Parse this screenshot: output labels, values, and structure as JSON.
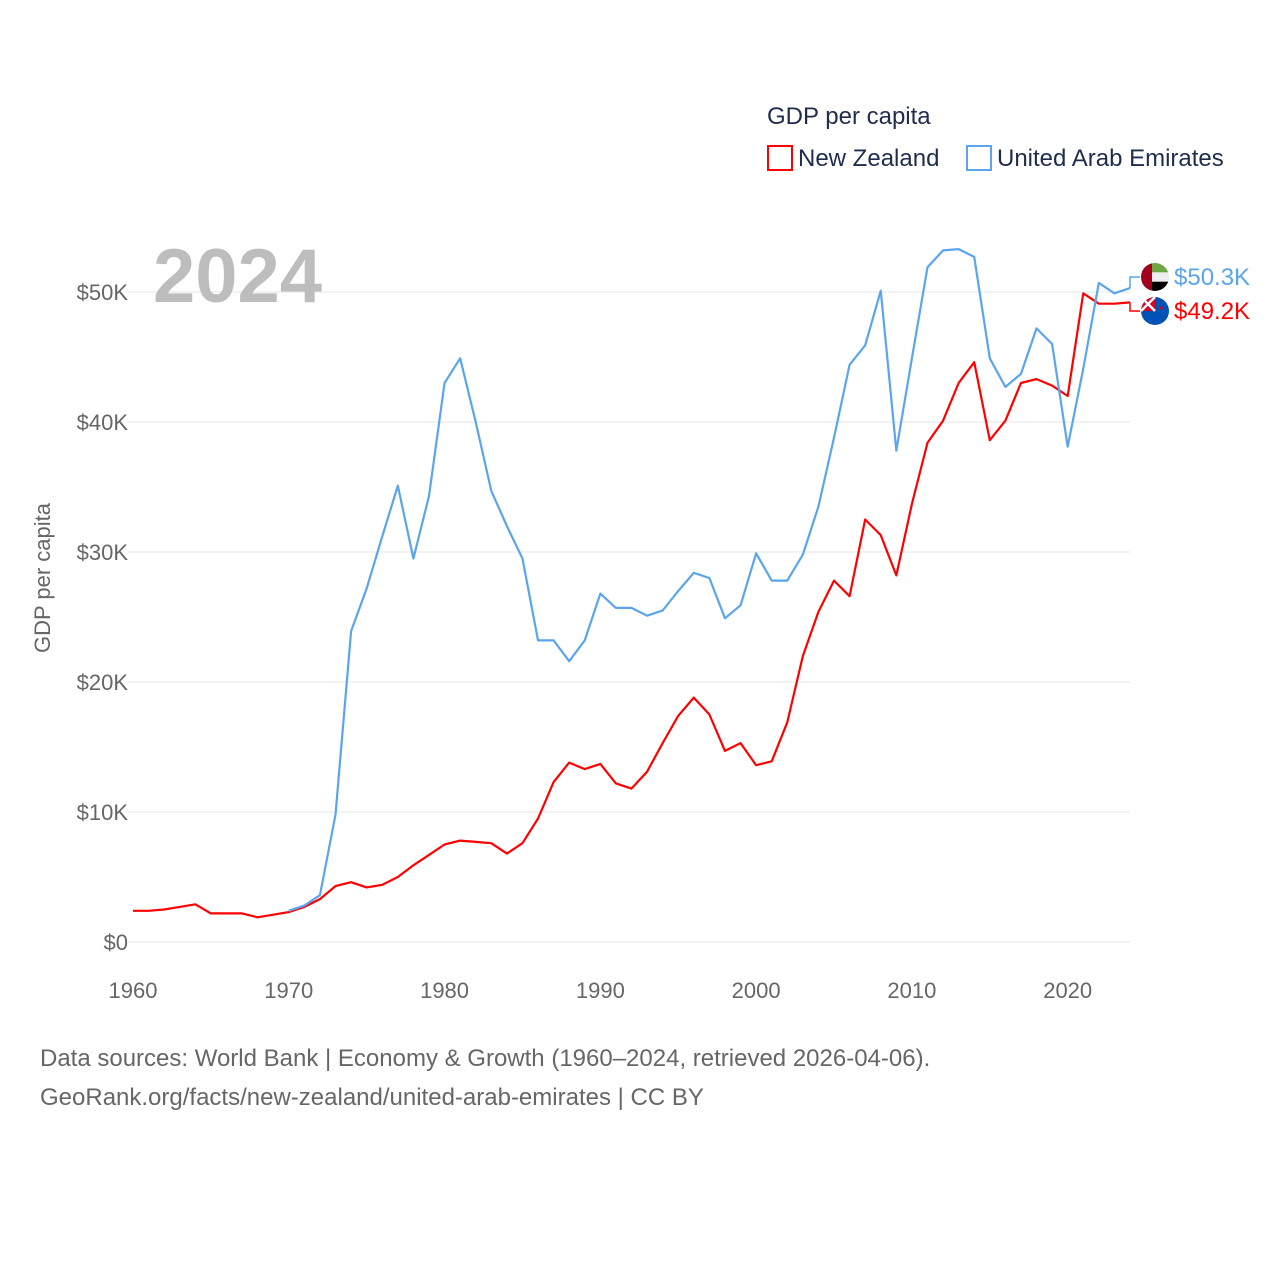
{
  "chart_data": {
    "type": "line",
    "title": "GDP per capita",
    "year_label": "2024",
    "xlabel": "",
    "ylabel": "GDP per capita",
    "xlim": [
      1960,
      2024
    ],
    "ylim": [
      0,
      50000
    ],
    "x_ticks": [
      1960,
      1970,
      1980,
      1990,
      2000,
      2010,
      2020
    ],
    "x_tick_labels": [
      "1960",
      "1970",
      "1980",
      "1990",
      "2000",
      "2010",
      "2020"
    ],
    "y_ticks": [
      0,
      10000,
      20000,
      30000,
      40000,
      50000
    ],
    "y_tick_labels": [
      "$0",
      "$10K",
      "$20K",
      "$30K",
      "$40K",
      "$50K"
    ],
    "grid": true,
    "legend_placement": "top-right",
    "series": [
      {
        "name": "New Zealand",
        "color": "#ff0000",
        "end_label": "$49.2K",
        "flag": "new-zealand",
        "start_year": 1960,
        "values_k": [
          2.4,
          2.4,
          2.5,
          2.7,
          2.9,
          2.2,
          2.2,
          2.2,
          1.9,
          2.1,
          2.3,
          2.7,
          3.3,
          4.3,
          4.6,
          4.2,
          4.4,
          5.0,
          5.9,
          6.7,
          7.5,
          7.8,
          7.7,
          7.6,
          6.8,
          7.6,
          9.5,
          12.3,
          13.8,
          13.3,
          13.7,
          12.2,
          11.8,
          13.1,
          15.3,
          17.4,
          18.8,
          17.5,
          14.7,
          15.3,
          13.6,
          13.9,
          16.9,
          22.0,
          25.4,
          27.8,
          26.6,
          32.5,
          31.3,
          28.2,
          33.7,
          38.4,
          40.1,
          43.0,
          44.6,
          38.6,
          40.1,
          43.0,
          43.3,
          42.8,
          42.0,
          49.9,
          49.1,
          49.1,
          49.2
        ]
      },
      {
        "name": "United Arab Emirates",
        "color": "#5aa5ec",
        "end_label": "$50.3K",
        "flag": "united-arab-emirates",
        "start_year": 1970,
        "values_k": [
          2.4,
          2.8,
          3.6,
          9.8,
          23.9,
          27.2,
          31.2,
          35.1,
          29.5,
          34.3,
          43.0,
          44.9,
          40.0,
          34.7,
          32.0,
          29.5,
          23.2,
          23.2,
          21.6,
          23.2,
          26.8,
          25.7,
          25.7,
          25.1,
          25.5,
          27.0,
          28.4,
          28.0,
          24.9,
          25.9,
          29.9,
          27.8,
          27.8,
          29.8,
          33.5,
          38.8,
          44.4,
          45.9,
          50.1,
          37.8,
          44.9,
          51.9,
          53.2,
          53.3,
          52.7,
          44.9,
          42.7,
          43.7,
          47.2,
          46.0,
          38.1,
          44.1,
          50.7,
          49.9,
          50.3
        ]
      }
    ]
  },
  "footer": {
    "line1": "Data sources: World Bank | Economy & Growth (1960–2024, retrieved 2026-04-06).",
    "line2": "GeoRank.org/facts/new-zealand/united-arab-emirates | CC BY"
  }
}
